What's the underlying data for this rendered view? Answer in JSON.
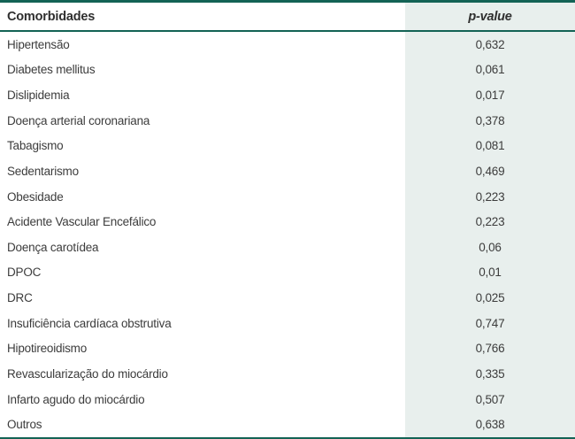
{
  "colors": {
    "accent_rule": "#136355",
    "pvalue_column_bg": "#e8efed",
    "text": "#3c3c3c"
  },
  "table": {
    "header": {
      "comorbidity_label": "Comorbidades",
      "p_value_label": "p-value"
    },
    "rows": [
      {
        "label": "Hipertensão",
        "p": "0,632"
      },
      {
        "label": "Diabetes mellitus",
        "p": "0,061"
      },
      {
        "label": "Dislipidemia",
        "p": "0,017"
      },
      {
        "label": "Doença arterial coronariana",
        "p": "0,378"
      },
      {
        "label": "Tabagismo",
        "p": "0,081"
      },
      {
        "label": "Sedentarismo",
        "p": "0,469"
      },
      {
        "label": "Obesidade",
        "p": "0,223"
      },
      {
        "label": "Acidente Vascular Encefálico",
        "p": "0,223"
      },
      {
        "label": "Doença carotídea",
        "p": "0,06"
      },
      {
        "label": "DPOC",
        "p": "0,01"
      },
      {
        "label": "DRC",
        "p": "0,025"
      },
      {
        "label": "Insuficiência cardíaca obstrutiva",
        "p": "0,747"
      },
      {
        "label": "Hipotireoidismo",
        "p": "0,766"
      },
      {
        "label": "Revascularização do miocárdio",
        "p": "0,335"
      },
      {
        "label": "Infarto agudo do miocárdio",
        "p": "0,507"
      },
      {
        "label": "Outros",
        "p": "0,638"
      }
    ]
  }
}
